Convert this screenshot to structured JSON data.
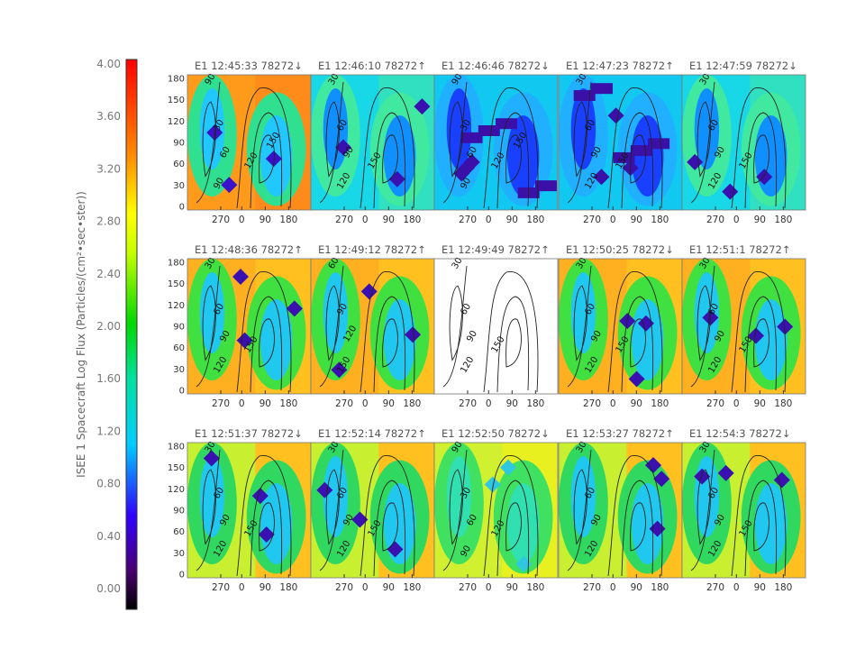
{
  "figure": {
    "colorbar": {
      "label": "ISEE 1 Spacecraft    Log Flux  (Particles/(cm²•sec•ster))",
      "ticks": [
        "4.00",
        "3.60",
        "3.20",
        "2.80",
        "2.40",
        "2.00",
        "1.60",
        "1.20",
        "0.80",
        "0.40",
        "0.00"
      ],
      "range": [
        0,
        4
      ]
    },
    "axis": {
      "x_ticks": [
        "270",
        "0",
        "90",
        "180"
      ],
      "y_ticks": [
        "180",
        "150",
        "120",
        "90",
        "60",
        "30",
        "0"
      ]
    },
    "panels": [
      {
        "title": "E1  12:45:33  78272↓",
        "contour_labels": [
          "90",
          "30",
          "60",
          "90",
          "120",
          "150"
        ],
        "style": "orange"
      },
      {
        "title": "E1  12:46:10  78272↑",
        "contour_labels": [
          "30",
          "60",
          "90",
          "120",
          "150"
        ],
        "style": "blue"
      },
      {
        "title": "E1  12:46:46  78272↓",
        "contour_labels": [
          "90",
          "30",
          "60",
          "90",
          "120",
          "150"
        ],
        "style": "dark"
      },
      {
        "title": "E1  12:47:23  78272↑",
        "contour_labels": [
          "30",
          "60",
          "90",
          "120",
          "150"
        ],
        "style": "dark"
      },
      {
        "title": "E1  12:47:59  78272↓",
        "contour_labels": [
          "30",
          "60",
          "90",
          "120",
          "150"
        ],
        "style": "blue"
      },
      {
        "title": "E1  12:48:36  78272↑",
        "contour_labels": [
          "30",
          "60",
          "90",
          "120",
          "150"
        ],
        "style": "mid"
      },
      {
        "title": "E1  12:49:12  78272↑",
        "contour_labels": [
          "60",
          "90",
          "120",
          "150"
        ],
        "style": "mid"
      },
      {
        "title": "E1  12:49:49  78272↑",
        "contour_labels": [
          "30",
          "60",
          "90",
          "120",
          "150"
        ],
        "style": "empty"
      },
      {
        "title": "E1  12:50:25  78272↓",
        "contour_labels": [
          "30",
          "60",
          "90",
          "120",
          "150"
        ],
        "style": "mid"
      },
      {
        "title": "E1  12:51:1  78272↑",
        "contour_labels": [
          "30",
          "60",
          "90",
          "120",
          "150"
        ],
        "style": "mid"
      },
      {
        "title": "E1  12:51:37  78272↓",
        "contour_labels": [
          "30",
          "60",
          "90",
          "120",
          "150"
        ],
        "style": "warm"
      },
      {
        "title": "E1  12:52:14  78272↑",
        "contour_labels": [
          "30",
          "60",
          "90",
          "120",
          "150"
        ],
        "style": "warm"
      },
      {
        "title": "E1  12:52:50  78272↓",
        "contour_labels": [
          "90",
          "30",
          "60",
          "90",
          "120"
        ],
        "style": "yellow"
      },
      {
        "title": "E1  12:53:27  78272↑",
        "contour_labels": [
          "30",
          "60",
          "90",
          "120"
        ],
        "style": "warm"
      },
      {
        "title": "E1  12:54:3  78272↓",
        "contour_labels": [
          "30",
          "60",
          "90",
          "120",
          "150"
        ],
        "style": "warm"
      }
    ]
  },
  "chart_data": {
    "type": "heatmap",
    "title": "",
    "colorbar_label": "ISEE 1 Spacecraft    Log Flux  (Particles/(cm²•sec•ster))",
    "colorbar_range": [
      0,
      4
    ],
    "x_ticks": [
      270,
      0,
      90,
      180
    ],
    "y_ticks": [
      0,
      30,
      60,
      90,
      120,
      150,
      180
    ],
    "ylim": [
      0,
      180
    ],
    "contour_levels": [
      30,
      60,
      90,
      120,
      150
    ],
    "panels": [
      "E1  12:45:33  78272↓",
      "E1  12:46:10  78272↑",
      "E1  12:46:46  78272↓",
      "E1  12:47:23  78272↑",
      "E1  12:47:59  78272↓",
      "E1  12:48:36  78272↑",
      "E1  12:49:12  78272↑",
      "E1  12:49:49  78272↑",
      "E1  12:50:25  78272↓",
      "E1  12:51:1  78272↑",
      "E1  12:51:37  78272↓",
      "E1  12:52:14  78272↑",
      "E1  12:52:50  78272↓",
      "E1  12:53:27  78272↑",
      "E1  12:54:3  78272↓"
    ]
  }
}
